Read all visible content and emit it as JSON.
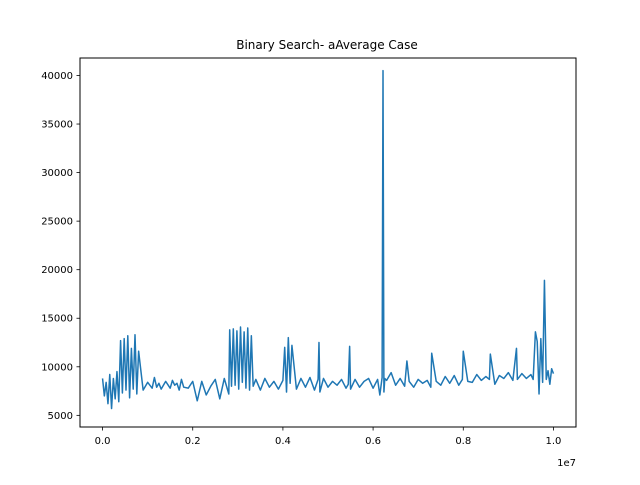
{
  "chart_data": {
    "type": "line",
    "title": "Binary Search- aAverage Case",
    "xlabel": "",
    "ylabel": "",
    "x_offset_label": "1e7",
    "xlim": [
      -0.05,
      1.05
    ],
    "ylim": [
      3800,
      41800
    ],
    "x_ticks": [
      0.0,
      0.2,
      0.4,
      0.6,
      0.8,
      1.0
    ],
    "x_tick_labels": [
      "0.0",
      "0.2",
      "0.4",
      "0.6",
      "0.8",
      "1.0"
    ],
    "y_ticks": [
      5000,
      10000,
      15000,
      20000,
      25000,
      30000,
      35000,
      40000
    ],
    "y_tick_labels": [
      "5000",
      "10000",
      "15000",
      "20000",
      "25000",
      "30000",
      "35000",
      "40000"
    ],
    "grid": false,
    "line_color": "#1f77b4",
    "series": [
      {
        "name": "",
        "x": [
          0.0,
          0.004,
          0.008,
          0.012,
          0.016,
          0.02,
          0.024,
          0.028,
          0.032,
          0.036,
          0.04,
          0.044,
          0.048,
          0.052,
          0.056,
          0.06,
          0.064,
          0.068,
          0.072,
          0.076,
          0.08,
          0.09,
          0.1,
          0.11,
          0.115,
          0.12,
          0.125,
          0.13,
          0.14,
          0.15,
          0.155,
          0.16,
          0.165,
          0.17,
          0.175,
          0.18,
          0.19,
          0.2,
          0.21,
          0.22,
          0.23,
          0.24,
          0.25,
          0.26,
          0.27,
          0.28,
          0.282,
          0.286,
          0.29,
          0.294,
          0.298,
          0.302,
          0.306,
          0.31,
          0.314,
          0.318,
          0.322,
          0.326,
          0.33,
          0.334,
          0.34,
          0.35,
          0.36,
          0.37,
          0.38,
          0.39,
          0.4,
          0.404,
          0.408,
          0.412,
          0.416,
          0.42,
          0.43,
          0.44,
          0.45,
          0.46,
          0.47,
          0.478,
          0.48,
          0.482,
          0.49,
          0.5,
          0.51,
          0.52,
          0.53,
          0.54,
          0.545,
          0.548,
          0.55,
          0.56,
          0.57,
          0.58,
          0.59,
          0.6,
          0.61,
          0.615,
          0.62,
          0.622,
          0.624,
          0.626,
          0.63,
          0.64,
          0.65,
          0.66,
          0.67,
          0.675,
          0.68,
          0.69,
          0.7,
          0.71,
          0.72,
          0.728,
          0.73,
          0.74,
          0.75,
          0.76,
          0.77,
          0.78,
          0.79,
          0.798,
          0.8,
          0.81,
          0.82,
          0.83,
          0.84,
          0.85,
          0.858,
          0.86,
          0.87,
          0.88,
          0.89,
          0.9,
          0.91,
          0.918,
          0.92,
          0.93,
          0.94,
          0.95,
          0.955,
          0.96,
          0.964,
          0.968,
          0.972,
          0.976,
          0.98,
          0.984,
          0.988,
          0.992,
          0.996,
          1.0
        ],
        "y": [
          8800,
          7000,
          8400,
          6200,
          9200,
          5700,
          8800,
          6700,
          9500,
          6400,
          12700,
          7300,
          12900,
          7600,
          13200,
          6800,
          11900,
          7700,
          13300,
          7200,
          11600,
          7600,
          8400,
          7800,
          8900,
          7900,
          8300,
          7700,
          8500,
          7800,
          8600,
          8100,
          8300,
          7600,
          8700,
          7900,
          7800,
          8500,
          6500,
          8500,
          7100,
          8000,
          8700,
          6700,
          8800,
          7200,
          13800,
          8000,
          13900,
          8100,
          13700,
          7700,
          14100,
          8400,
          13600,
          7800,
          14000,
          7600,
          13200,
          8000,
          8700,
          7600,
          8800,
          7900,
          8500,
          7700,
          8600,
          12000,
          7400,
          13000,
          8300,
          12200,
          7700,
          8800,
          7900,
          8900,
          7600,
          8700,
          12500,
          7400,
          8800,
          7900,
          8500,
          8100,
          8700,
          7800,
          8200,
          12100,
          7700,
          8700,
          7900,
          8500,
          8800,
          7800,
          8700,
          7100,
          8900,
          40500,
          7400,
          8800,
          8600,
          9400,
          8100,
          8800,
          8000,
          10600,
          8500,
          7900,
          8700,
          8300,
          8600,
          7900,
          11400,
          8500,
          8100,
          9000,
          8300,
          9100,
          8100,
          8700,
          11600,
          8500,
          8400,
          9200,
          8600,
          9000,
          8700,
          11300,
          8200,
          9100,
          8800,
          9400,
          8600,
          11900,
          8700,
          9300,
          8800,
          9200,
          8700,
          13600,
          12600,
          7200,
          12900,
          8400,
          18900,
          8700,
          9600,
          8200,
          9800,
          9300
        ]
      }
    ]
  }
}
